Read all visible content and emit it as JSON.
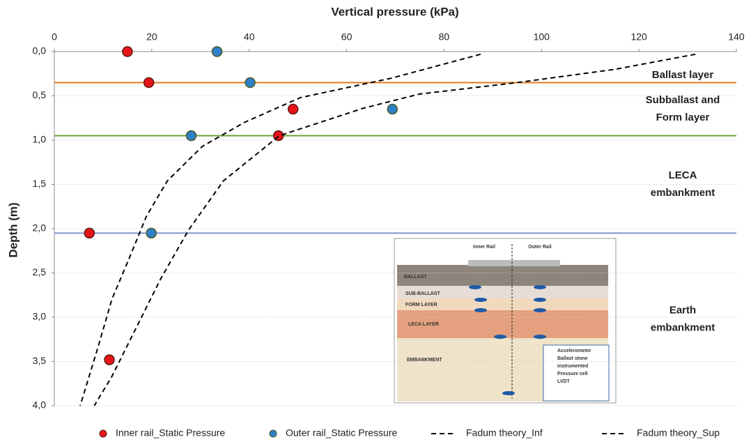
{
  "chart_data": {
    "type": "scatter",
    "x_label": "Vertical pressure (kPa)",
    "y_label": "Depth (m)",
    "xlim": [
      0,
      140
    ],
    "xticks": [
      0,
      20,
      40,
      60,
      80,
      100,
      120,
      140
    ],
    "ylim": [
      0,
      4
    ],
    "y_inverted": true,
    "yticks": [
      {
        "value": 0,
        "label": "0,0"
      },
      {
        "value": 0.5,
        "label": "0,5"
      },
      {
        "value": 1,
        "label": "1,0"
      },
      {
        "value": 1.5,
        "label": "1,5"
      },
      {
        "value": 2,
        "label": "2,0"
      },
      {
        "value": 2.5,
        "label": "2,5"
      },
      {
        "value": 3,
        "label": "3,0"
      },
      {
        "value": 3.5,
        "label": "3,5"
      },
      {
        "value": 4,
        "label": "4,0"
      }
    ],
    "grid": true,
    "series": [
      {
        "name": "Inner rail_Static Pressure",
        "color": "#e8141b",
        "edge": "#5a1a10",
        "style": "marker",
        "x": [
          15,
          19.4,
          49,
          46,
          7.2,
          11.3
        ],
        "values": [
          0,
          0.35,
          0.65,
          0.95,
          2.05,
          3.48
        ]
      },
      {
        "name": "Outer rail_Static Pressure",
        "color": "#2e80c8",
        "edge": "#4a5a20",
        "style": "marker",
        "x": [
          33.4,
          40.2,
          69.4,
          28.1,
          19.9
        ],
        "values": [
          0,
          0.35,
          0.65,
          0.95,
          2.05
        ]
      },
      {
        "name": "Fadum theory_Inf",
        "color": "#000000",
        "style": "dashed",
        "x": [
          87.5,
          69.2,
          50.5,
          39.0,
          30.4,
          23.2,
          18.9,
          15.4,
          11.8,
          8.9,
          5.3
        ],
        "values": [
          0.03,
          0.3,
          0.52,
          0.8,
          1.07,
          1.46,
          1.86,
          2.33,
          2.8,
          3.35,
          4.0
        ]
      },
      {
        "name": "Fadum theory_Sup",
        "color": "#000000",
        "style": "dashed",
        "x": [
          131.6,
          115.1,
          95,
          74.9,
          63.4,
          46.2,
          34.7,
          27.5,
          21.8,
          16.8,
          11.8,
          8.2
        ],
        "values": [
          0.03,
          0.2,
          0.35,
          0.48,
          0.64,
          0.95,
          1.46,
          2.02,
          2.57,
          3.12,
          3.67,
          4.0
        ]
      }
    ],
    "layers": [
      {
        "label": [
          "Ballast layer"
        ],
        "depth": 0.35,
        "color": "#e07b20"
      },
      {
        "label": [
          "Subballast and",
          "Form layer"
        ],
        "depth": 0.95,
        "color": "#6aa03a"
      },
      {
        "label": [
          "LECA",
          "embankment"
        ],
        "depth": 2.05,
        "color": "#7f95d0"
      },
      {
        "label": [
          "Earth",
          "embankment"
        ]
      }
    ],
    "inset": {
      "rails": [
        "Inner Rail",
        "Outer Rail"
      ],
      "layers": [
        "BALLAST",
        "SUB-BALLAST",
        "FORM LAYER",
        "LECA LAYER",
        "EMBANKMENT"
      ],
      "legend": [
        [
          "Accelerometer"
        ],
        [
          "Ballast stone",
          "instrumented"
        ],
        [
          "Pressure cell"
        ],
        [
          "LVDT"
        ]
      ]
    }
  }
}
